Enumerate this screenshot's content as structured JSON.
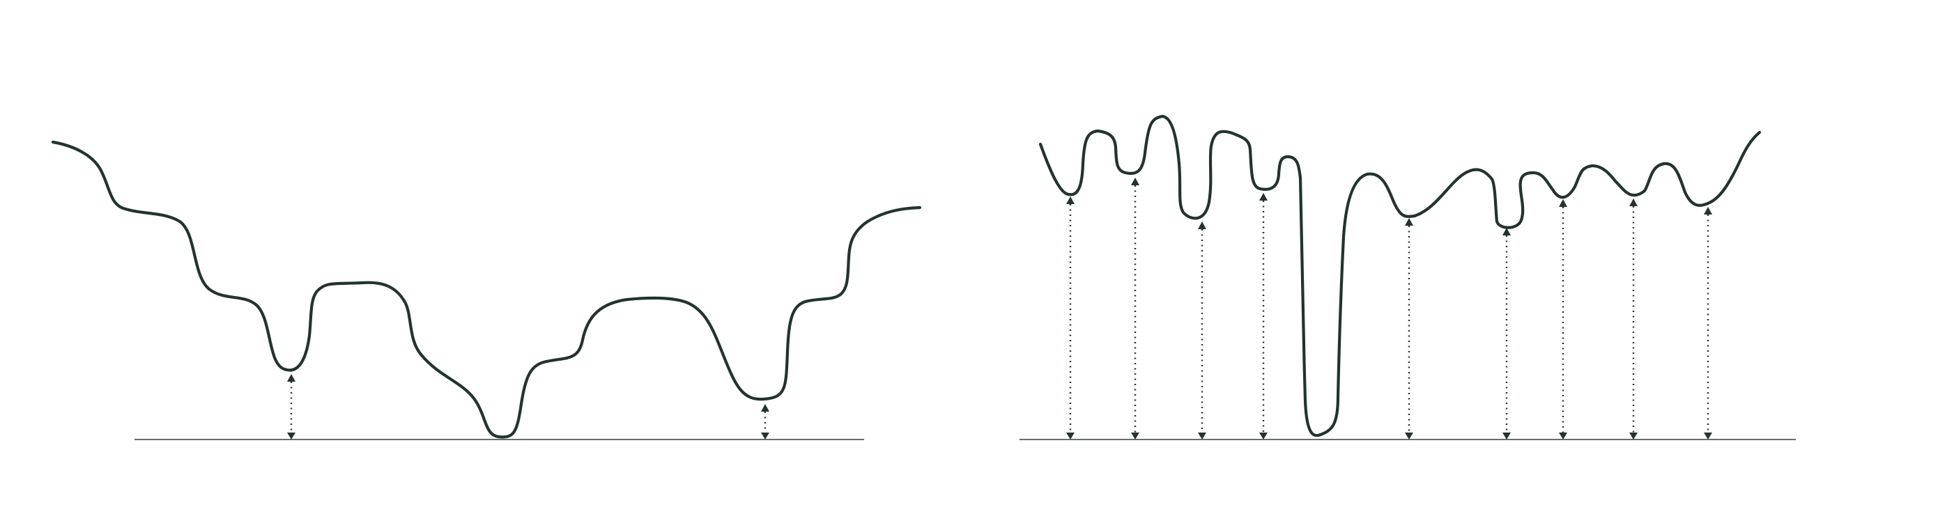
{
  "colors": {
    "curve": "#23332f",
    "baseline": "#6b6b6b",
    "background": "#ffffff"
  },
  "panels": [
    {
      "name": "left-panel",
      "description_visible_text": "",
      "local_minima_marked": 2
    },
    {
      "name": "right-panel",
      "description_visible_text": "",
      "local_minima_marked": 10
    }
  ]
}
